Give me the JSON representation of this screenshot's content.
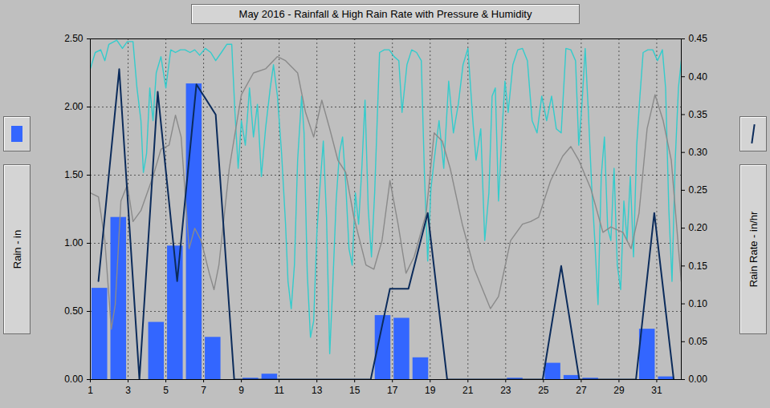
{
  "chart_data": {
    "type": "bar",
    "title": "May 2016 - Rainfall & High Rain Rate with Pressure & Humidity",
    "y_label": "Rain - in",
    "y2_label": "Rain Rate - in/hr",
    "xlim": [
      1,
      32.3
    ],
    "xticks": [
      1,
      3,
      5,
      7,
      9,
      11,
      13,
      15,
      17,
      19,
      21,
      23,
      25,
      27,
      29,
      31
    ],
    "ylim": [
      0,
      2.5
    ],
    "yticks": [
      {
        "value": 0,
        "label": "0.00"
      },
      {
        "value": 0.5,
        "label": "0.50"
      },
      {
        "value": 1,
        "label": "1.00"
      },
      {
        "value": 1.5,
        "label": "1.50"
      },
      {
        "value": 2,
        "label": "2.00"
      },
      {
        "value": 2.5,
        "label": "2.50"
      }
    ],
    "y2lim": [
      0,
      0.45
    ],
    "y2ticks": [
      {
        "value": 0,
        "label": "0.00"
      },
      {
        "value": 0.05,
        "label": "0.05"
      },
      {
        "value": 0.1,
        "label": "0.10"
      },
      {
        "value": 0.15,
        "label": "0.15"
      },
      {
        "value": 0.2,
        "label": "0.20"
      },
      {
        "value": 0.25,
        "label": "0.25"
      },
      {
        "value": 0.3,
        "label": "0.30"
      },
      {
        "value": 0.35,
        "label": "0.35"
      },
      {
        "value": 0.4,
        "label": "0.40"
      },
      {
        "value": 0.45,
        "label": "0.45"
      }
    ],
    "grid": true,
    "series": [
      {
        "name": "Rain - in",
        "type": "bar",
        "color": "#3366ff",
        "x": [
          1,
          2,
          3,
          4,
          5,
          6,
          7,
          8,
          9,
          10,
          11,
          12,
          13,
          14,
          15,
          16,
          17,
          18,
          19,
          20,
          21,
          22,
          23,
          24,
          25,
          26,
          27,
          28,
          29,
          30,
          31
        ],
        "values": [
          0.67,
          1.19,
          0,
          0.42,
          0.98,
          2.17,
          0.31,
          0,
          0.01,
          0.04,
          0,
          0,
          0,
          0,
          0,
          0.47,
          0.45,
          0.16,
          0,
          0,
          0,
          0,
          0.01,
          0,
          0.12,
          0.03,
          0.01,
          0,
          0,
          0.37,
          0.02
        ]
      },
      {
        "name": "Humidity",
        "type": "line",
        "color": "#33cccc",
        "x": [
          1.0,
          1.26,
          1.55,
          1.77,
          1.98,
          2.4,
          2.7,
          2.96,
          3.26,
          3.47,
          3.68,
          3.81,
          3.98,
          4.15,
          4.32,
          4.49,
          4.74,
          5.0,
          5.26,
          5.51,
          5.77,
          6.02,
          6.28,
          6.53,
          6.79,
          7.09,
          7.38,
          7.64,
          7.94,
          8.23,
          8.49,
          8.66,
          8.83,
          9.0,
          9.21,
          9.43,
          9.64,
          9.85,
          10.06,
          10.28,
          10.53,
          10.7,
          10.91,
          11.13,
          11.34,
          11.47,
          11.64,
          11.81,
          11.98,
          12.19,
          12.32,
          12.49,
          12.66,
          12.83,
          13.0,
          13.17,
          13.34,
          13.51,
          13.68,
          13.85,
          14.02,
          14.19,
          14.36,
          14.53,
          14.7,
          14.87,
          15.04,
          15.21,
          15.38,
          15.55,
          15.72,
          15.89,
          16.06,
          16.32,
          16.57,
          16.83,
          17.09,
          17.34,
          17.51,
          17.77,
          18.02,
          18.28,
          18.53,
          18.7,
          18.87,
          19.04,
          19.21,
          19.47,
          19.72,
          19.98,
          20.23,
          20.49,
          20.74,
          21.0,
          21.26,
          21.43,
          21.68,
          21.89,
          22.11,
          22.28,
          22.45,
          22.62,
          22.79,
          22.96,
          23.13,
          23.38,
          23.64,
          23.89,
          24.15,
          24.4,
          24.66,
          24.91,
          25.17,
          25.43,
          25.68,
          25.94,
          26.19,
          26.45,
          26.7,
          26.87,
          27.04,
          27.21,
          27.38,
          27.55,
          27.72,
          27.89,
          28.06,
          28.23,
          28.4,
          28.57,
          28.74,
          28.91,
          29.09,
          29.26,
          29.43,
          29.6,
          29.77,
          29.94,
          30.11,
          30.28,
          30.53,
          30.79,
          31.04,
          31.3,
          31.47,
          31.64,
          31.81,
          31.98,
          32.15,
          32.3
        ],
        "values": [
          2.28,
          2.4,
          2.42,
          2.34,
          2.46,
          2.49,
          2.43,
          2.48,
          2.48,
          2.14,
          1.9,
          1.52,
          1.66,
          2.14,
          1.9,
          2.25,
          2.37,
          2.14,
          2.42,
          2.4,
          2.42,
          2.42,
          2.4,
          2.42,
          2.38,
          2.43,
          2.4,
          2.34,
          2.4,
          2.46,
          2.46,
          1.96,
          1.55,
          1.9,
          1.72,
          2.14,
          1.78,
          2.02,
          1.49,
          1.84,
          2.14,
          2.31,
          2.08,
          1.66,
          1.14,
          0.72,
          0.52,
          0.84,
          1.61,
          2.08,
          1.81,
          0.78,
          0.31,
          0.43,
          1.08,
          1.43,
          1.75,
          1.19,
          0.19,
          0.72,
          1.31,
          1.66,
          1.78,
          1.43,
          0.96,
          0.84,
          1.37,
          1.14,
          1.55,
          2.05,
          1.25,
          0.9,
          1.37,
          2.4,
          2.42,
          2.42,
          2.37,
          2.34,
          1.96,
          2.31,
          2.42,
          2.4,
          2.34,
          1.49,
          0.87,
          1.4,
          1.61,
          1.9,
          1.55,
          2.19,
          1.81,
          2.02,
          2.31,
          2.43,
          1.9,
          1.61,
          1.84,
          1.02,
          1.37,
          2.08,
          2.14,
          1.31,
          1.78,
          2.19,
          1.96,
          2.31,
          2.42,
          2.43,
          2.34,
          1.9,
          1.81,
          2.08,
          1.9,
          2.08,
          1.84,
          1.81,
          2.43,
          2.42,
          2.34,
          1.72,
          2.02,
          2.43,
          1.96,
          1.43,
          1.02,
          0.55,
          1.49,
          1.78,
          1.11,
          1.02,
          1.55,
          0.84,
          0.66,
          1.31,
          1.02,
          1.49,
          0.9,
          1.72,
          2.08,
          2.4,
          2.42,
          2.42,
          2.34,
          2.42,
          2.14,
          1.25,
          0.72,
          1.61,
          2.14,
          2.34
        ]
      },
      {
        "name": "Pressure",
        "type": "line",
        "color": "#8a8a8a",
        "x": [
          1.0,
          1.43,
          1.77,
          2.11,
          2.32,
          2.62,
          2.96,
          3.26,
          3.68,
          4.32,
          4.74,
          5.17,
          5.51,
          5.81,
          6.23,
          6.53,
          6.87,
          7.3,
          7.55,
          7.81,
          8.36,
          9.0,
          9.64,
          10.28,
          10.91,
          11.34,
          11.98,
          12.4,
          12.83,
          13.26,
          13.68,
          14.11,
          14.53,
          14.96,
          15.6,
          16.02,
          16.45,
          16.87,
          17.3,
          17.72,
          18.15,
          18.79,
          19.21,
          19.64,
          20.06,
          20.7,
          21.34,
          22.19,
          22.62,
          23.26,
          23.89,
          24.32,
          24.74,
          25.38,
          26.02,
          26.45,
          26.87,
          27.51,
          28.15,
          28.57,
          29.21,
          29.64,
          30.06,
          30.49,
          30.91,
          31.34,
          31.77,
          32.19,
          32.3
        ],
        "values": [
          1.37,
          1.34,
          1.02,
          0.37,
          0.55,
          1.31,
          1.43,
          1.16,
          1.24,
          1.49,
          1.69,
          1.72,
          1.94,
          1.78,
          0.96,
          1.11,
          1.02,
          0.78,
          0.66,
          0.84,
          1.55,
          2.09,
          2.25,
          2.28,
          2.37,
          2.34,
          2.25,
          1.96,
          1.78,
          2.05,
          1.84,
          1.61,
          1.52,
          1.19,
          0.84,
          0.81,
          1.02,
          1.46,
          1.14,
          0.78,
          0.9,
          1.22,
          1.81,
          1.75,
          1.55,
          1.14,
          0.81,
          0.52,
          0.61,
          1.02,
          1.14,
          1.16,
          1.19,
          1.46,
          1.64,
          1.71,
          1.61,
          1.4,
          1.08,
          1.12,
          1.08,
          0.96,
          1.22,
          1.84,
          2.09,
          1.9,
          1.61,
          0.9,
          0.72
        ]
      },
      {
        "name": "Rain Rate - in/hr",
        "type": "line",
        "axis": "y2",
        "color": "#0b2b5b",
        "x": [
          1.43,
          2.53,
          3.6,
          4.57,
          5.6,
          6.62,
          7.64,
          8.62,
          15.85,
          16.87,
          17.85,
          18.87,
          19.9,
          24.96,
          25.94,
          26.9,
          29.9,
          30.87,
          31.9
        ],
        "values": [
          0.13,
          0.41,
          0,
          0.38,
          0.13,
          0.39,
          0.35,
          0,
          0,
          0.12,
          0.12,
          0.22,
          0,
          0,
          0.15,
          0,
          0,
          0.22,
          0
        ]
      }
    ]
  }
}
